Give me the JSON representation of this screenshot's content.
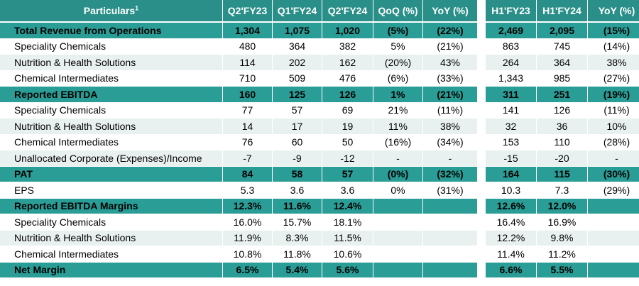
{
  "header": {
    "particulars": "Particulars",
    "particulars_sup": "1",
    "columns": [
      "Q2'FY23",
      "Q1'FY24",
      "Q2'FY24",
      "QoQ (%)",
      "YoY (%)"
    ],
    "h1_columns": [
      "H1'FY23",
      "H1'FY24",
      "YoY (%)"
    ]
  },
  "colors": {
    "header": "#2a8f88",
    "highlight": "#2a9d96",
    "alt_row": "#e9f1f0"
  },
  "rows": [
    {
      "label": "Total Revenue from Operations",
      "type": "highlight",
      "values": [
        "1,304",
        "1,075",
        "1,020",
        "(5%)",
        "(22%)"
      ],
      "h1": [
        "2,469",
        "2,095",
        "(15%)"
      ]
    },
    {
      "label": "Speciality Chemicals",
      "type": "sub",
      "values": [
        "480",
        "364",
        "382",
        "5%",
        "(21%)"
      ],
      "h1": [
        "863",
        "745",
        "(14%)"
      ]
    },
    {
      "label": "Nutrition & Health Solutions",
      "type": "sub-alt",
      "values": [
        "114",
        "202",
        "162",
        "(20%)",
        "43%"
      ],
      "h1": [
        "264",
        "364",
        "38%"
      ]
    },
    {
      "label": "Chemical Intermediates",
      "type": "sub",
      "values": [
        "710",
        "509",
        "476",
        "(6%)",
        "(33%)"
      ],
      "h1": [
        "1,343",
        "985",
        "(27%)"
      ]
    },
    {
      "label": "Reported EBITDA",
      "type": "highlight",
      "values": [
        "160",
        "125",
        "126",
        "1%",
        "(21%)"
      ],
      "h1": [
        "311",
        "251",
        "(19%)"
      ]
    },
    {
      "label": "Speciality Chemicals",
      "type": "sub",
      "values": [
        "77",
        "57",
        "69",
        "21%",
        "(11%)"
      ],
      "h1": [
        "141",
        "126",
        "(11%)"
      ]
    },
    {
      "label": "Nutrition & Health Solutions",
      "type": "sub-alt",
      "values": [
        "14",
        "17",
        "19",
        "11%",
        "38%"
      ],
      "h1": [
        "32",
        "36",
        "10%"
      ]
    },
    {
      "label": "Chemical Intermediates",
      "type": "sub",
      "values": [
        "76",
        "60",
        "50",
        "(16%)",
        "(34%)"
      ],
      "h1": [
        "153",
        "110",
        "(28%)"
      ]
    },
    {
      "label": "Unallocated Corporate  (Expenses)/Income",
      "type": "sub-alt",
      "values": [
        "-7",
        "-9",
        "-12",
        "-",
        "-"
      ],
      "h1": [
        "-15",
        "-20",
        "-"
      ]
    },
    {
      "label": "PAT",
      "type": "highlight",
      "values": [
        "84",
        "58",
        "57",
        "(0%)",
        "(32%)"
      ],
      "h1": [
        "164",
        "115",
        "(30%)"
      ]
    },
    {
      "label": "EPS",
      "type": "plain",
      "values": [
        "5.3",
        "3.6",
        "3.6",
        "0%",
        "(31%)"
      ],
      "h1": [
        "10.3",
        "7.3",
        "(29%)"
      ]
    },
    {
      "label": "Reported EBITDA Margins",
      "type": "highlight",
      "values": [
        "12.3%",
        "11.6%",
        "12.4%",
        "",
        ""
      ],
      "h1": [
        "12.6%",
        "12.0%",
        ""
      ]
    },
    {
      "label": "Speciality Chemicals",
      "type": "sub",
      "values": [
        "16.0%",
        "15.7%",
        "18.1%",
        "",
        ""
      ],
      "h1": [
        "16.4%",
        "16.9%",
        ""
      ]
    },
    {
      "label": "Nutrition & Health Solutions",
      "type": "sub-alt",
      "values": [
        "11.9%",
        "8.3%",
        "11.5%",
        "",
        ""
      ],
      "h1": [
        "12.2%",
        "9.8%",
        ""
      ]
    },
    {
      "label": "Chemical Intermediates",
      "type": "sub",
      "values": [
        "10.8%",
        "11.8%",
        "10.6%",
        "",
        ""
      ],
      "h1": [
        "11.4%",
        "11.2%",
        ""
      ]
    },
    {
      "label": "Net Margin",
      "type": "highlight",
      "values": [
        "6.5%",
        "5.4%",
        "5.6%",
        "",
        ""
      ],
      "h1": [
        "6.6%",
        "5.5%",
        ""
      ]
    }
  ]
}
